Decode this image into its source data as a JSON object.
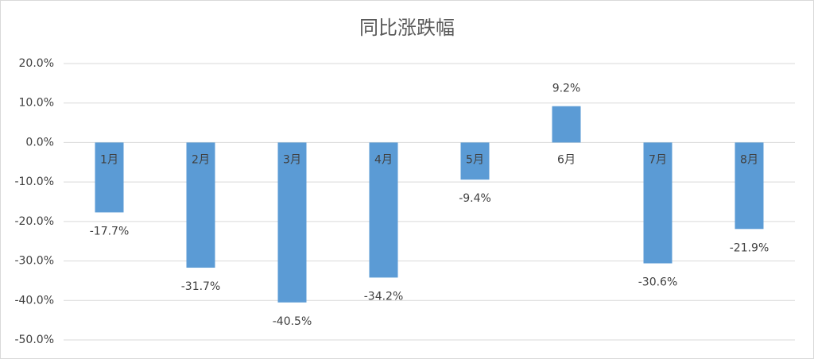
{
  "chart_data": {
    "type": "bar",
    "title": "同比涨跌幅",
    "categories": [
      "1月",
      "2月",
      "3月",
      "4月",
      "5月",
      "6月",
      "7月",
      "8月"
    ],
    "values": [
      -17.7,
      -31.7,
      -40.5,
      -34.2,
      -9.4,
      9.2,
      -30.6,
      -21.9
    ],
    "value_labels": [
      "-17.7%",
      "-31.7%",
      "-40.5%",
      "-34.2%",
      "-9.4%",
      "9.2%",
      "-30.6%",
      "-21.9%"
    ],
    "color": "#5b9bd5",
    "ylim": [
      -50,
      20
    ],
    "yticks": [
      {
        "value": 20,
        "label": "20.0%"
      },
      {
        "value": 10,
        "label": "10.0%"
      },
      {
        "value": 0,
        "label": "0.0%"
      },
      {
        "value": -10,
        "label": "-10.0%"
      },
      {
        "value": -20,
        "label": "-20.0%"
      },
      {
        "value": -30,
        "label": "-30.0%"
      },
      {
        "value": -40,
        "label": "-40.0%"
      },
      {
        "value": -50,
        "label": "-50.0%"
      }
    ],
    "grid": true
  }
}
